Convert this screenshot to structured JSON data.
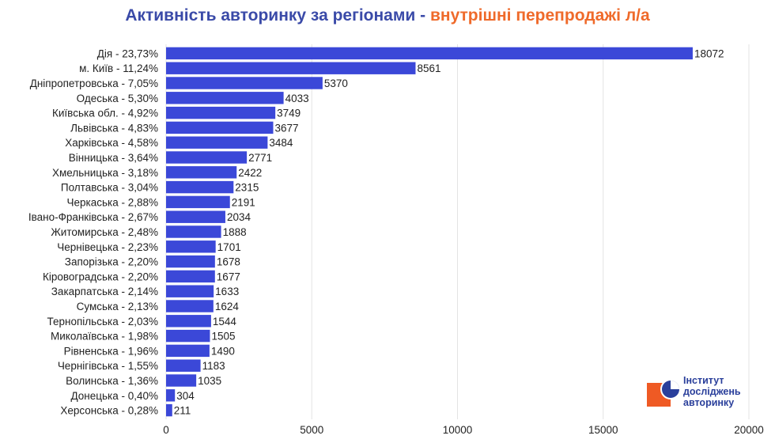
{
  "title_part1": "Активність авторинку за регіонами - ",
  "title_part2": "внутрішні перепродажі л/а",
  "logo": {
    "line1": "Інститут",
    "line2": "досліджень",
    "line3": "авторинку"
  },
  "colors": {
    "bar": "#3b48d8",
    "title_blue": "#3a4aa8",
    "title_orange": "#ef6a2a",
    "logo_orange": "#ef5a24",
    "logo_blue": "#2a3f9b"
  },
  "chart_data": {
    "type": "bar",
    "orientation": "horizontal",
    "categories": [
      "Дія - 23,73%",
      "м. Київ - 11,24%",
      "Дніпропетровська - 7,05%",
      "Одеська - 5,30%",
      "Київська обл. - 4,92%",
      "Львівська - 4,83%",
      "Харківська - 4,58%",
      "Вінницька - 3,64%",
      "Хмельницька - 3,18%",
      "Полтавська - 3,04%",
      "Черкаська - 2,88%",
      "Івано-Франківська - 2,67%",
      "Житомирська - 2,48%",
      "Чернівецька - 2,23%",
      "Запорізька - 2,20%",
      "Кіровоградська - 2,20%",
      "Закарпатська - 2,14%",
      "Сумська - 2,13%",
      "Тернопільська - 2,03%",
      "Миколаївська - 1,98%",
      "Рівненська - 1,96%",
      "Чернігівська - 1,55%",
      "Волинська - 1,36%",
      "Донецька - 0,40%",
      "Херсонська - 0,28%"
    ],
    "values": [
      18072,
      8561,
      5370,
      4033,
      3749,
      3677,
      3484,
      2771,
      2422,
      2315,
      2191,
      2034,
      1888,
      1701,
      1678,
      1677,
      1633,
      1624,
      1544,
      1505,
      1490,
      1183,
      1035,
      304,
      211
    ],
    "xlim": [
      0,
      20000
    ],
    "xticks": [
      0,
      5000,
      10000,
      15000,
      20000
    ],
    "grid": true,
    "legend": "none",
    "title": "Активність авторинку за регіонами - внутрішні перепродажі л/а",
    "xlabel": "",
    "ylabel": ""
  }
}
